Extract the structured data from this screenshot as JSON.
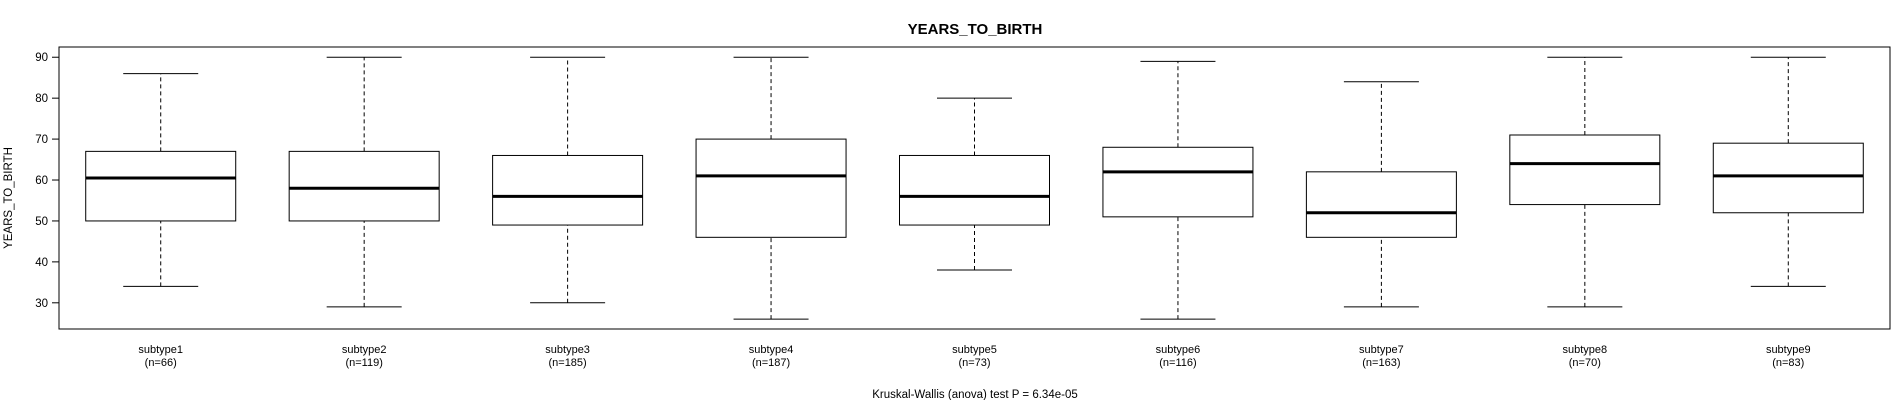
{
  "chart_data": {
    "type": "box",
    "title": "YEARS_TO_BIRTH",
    "ylabel": "YEARS_TO_BIRTH",
    "xlabel": "Kruskal-Wallis (anova) test P = 6.34e-05",
    "ylim": [
      23.6,
      92.5
    ],
    "yticks": [
      30,
      40,
      50,
      60,
      70,
      80,
      90
    ],
    "grid": false,
    "series": [
      {
        "label": "subtype1",
        "n_label": "(n=66)",
        "min": 34,
        "q1": 50,
        "median": 60.5,
        "q3": 67,
        "max": 86
      },
      {
        "label": "subtype2",
        "n_label": "(n=119)",
        "min": 29,
        "q1": 50,
        "median": 58,
        "q3": 67,
        "max": 90
      },
      {
        "label": "subtype3",
        "n_label": "(n=185)",
        "min": 30,
        "q1": 49,
        "median": 56,
        "q3": 66,
        "max": 90
      },
      {
        "label": "subtype4",
        "n_label": "(n=187)",
        "min": 26,
        "q1": 46,
        "median": 61,
        "q3": 70,
        "max": 90
      },
      {
        "label": "subtype5",
        "n_label": "(n=73)",
        "min": 38,
        "q1": 49,
        "median": 56,
        "q3": 66,
        "max": 80
      },
      {
        "label": "subtype6",
        "n_label": "(n=116)",
        "min": 26,
        "q1": 51,
        "median": 62,
        "q3": 68,
        "max": 89
      },
      {
        "label": "subtype7",
        "n_label": "(n=163)",
        "min": 29,
        "q1": 46,
        "median": 52,
        "q3": 62,
        "max": 84
      },
      {
        "label": "subtype8",
        "n_label": "(n=70)",
        "min": 29,
        "q1": 54,
        "median": 64,
        "q3": 71,
        "max": 90
      },
      {
        "label": "subtype9",
        "n_label": "(n=83)",
        "min": 34,
        "q1": 52,
        "median": 61,
        "q3": 69,
        "max": 90
      }
    ]
  }
}
